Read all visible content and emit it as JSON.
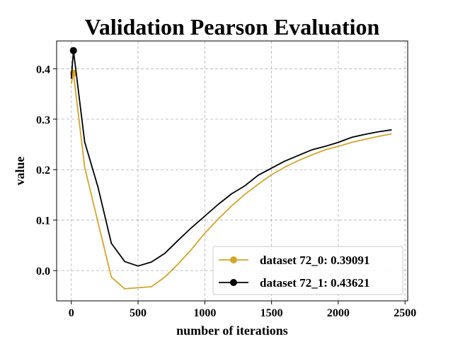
{
  "chart_data": {
    "type": "line",
    "title": "Validation Pearson Evaluation",
    "xlabel": "number of iterations",
    "ylabel": "value",
    "xlim": [
      -110,
      2520
    ],
    "ylim": [
      -0.06,
      0.455
    ],
    "xticks": [
      0,
      500,
      1000,
      1500,
      2000,
      2500
    ],
    "xtick_labels": [
      "0",
      "500",
      "1000",
      "1500",
      "2000",
      "2500"
    ],
    "yticks": [
      0.0,
      0.1,
      0.2,
      0.3,
      0.4
    ],
    "ytick_labels": [
      "0.0",
      "0.1",
      "0.2",
      "0.3",
      "0.4"
    ],
    "grid": true,
    "legend_position": "lower-right",
    "series": [
      {
        "name": "dataset 72_0: 0.39091",
        "color": "#d4a52a",
        "marker_point": [
          16,
          0.391
        ],
        "x": [
          0,
          16,
          100,
          200,
          300,
          400,
          500,
          600,
          700,
          800,
          900,
          1000,
          1100,
          1200,
          1300,
          1400,
          1500,
          1600,
          1700,
          1800,
          1900,
          2000,
          2100,
          2200,
          2300,
          2400
        ],
        "y": [
          0.37,
          0.391,
          0.205,
          0.095,
          -0.013,
          -0.036,
          -0.034,
          -0.032,
          -0.013,
          0.013,
          0.042,
          0.074,
          0.102,
          0.128,
          0.151,
          0.171,
          0.19,
          0.205,
          0.218,
          0.229,
          0.239,
          0.246,
          0.254,
          0.26,
          0.266,
          0.271
        ]
      },
      {
        "name": "dataset 72_1: 0.43621",
        "color": "#000000",
        "marker_point": [
          16,
          0.436
        ],
        "x": [
          0,
          16,
          100,
          200,
          300,
          400,
          500,
          600,
          700,
          800,
          900,
          1000,
          1100,
          1200,
          1300,
          1400,
          1500,
          1600,
          1700,
          1800,
          1900,
          2000,
          2100,
          2200,
          2300,
          2400
        ],
        "y": [
          0.38,
          0.436,
          0.255,
          0.165,
          0.054,
          0.018,
          0.009,
          0.017,
          0.034,
          0.06,
          0.085,
          0.108,
          0.131,
          0.152,
          0.168,
          0.189,
          0.203,
          0.217,
          0.228,
          0.239,
          0.246,
          0.254,
          0.264,
          0.27,
          0.275,
          0.279
        ]
      }
    ]
  }
}
